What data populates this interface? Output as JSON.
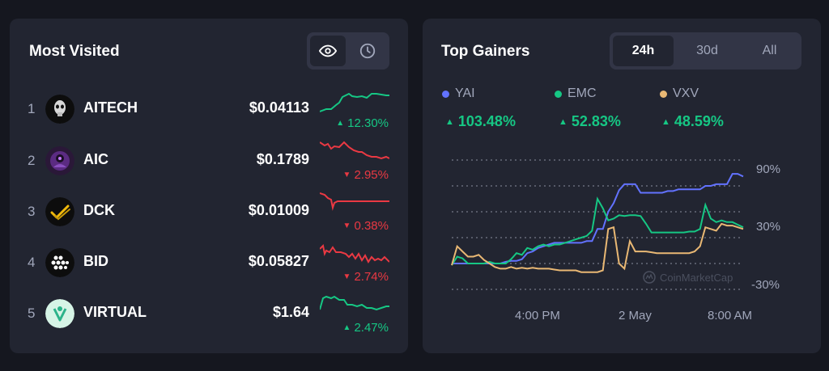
{
  "most_visited": {
    "title": "Most Visited",
    "toggle": {
      "eye_icon": "eye-icon",
      "clock_icon": "clock-icon",
      "active": "eye"
    },
    "rows": [
      {
        "rank": "1",
        "symbol": "AITECH",
        "price": "$0.04113",
        "change": "12.30%",
        "direction": "up",
        "icon": "aitech-icon",
        "color": "#16c784"
      },
      {
        "rank": "2",
        "symbol": "AIC",
        "price": "$0.1789",
        "change": "2.95%",
        "direction": "down",
        "icon": "aic-icon",
        "color": "#ea3943"
      },
      {
        "rank": "3",
        "symbol": "DCK",
        "price": "$0.01009",
        "change": "0.38%",
        "direction": "down",
        "icon": "dck-icon",
        "color": "#ea3943"
      },
      {
        "rank": "4",
        "symbol": "BID",
        "price": "$0.05827",
        "change": "2.74%",
        "direction": "down",
        "icon": "bid-icon",
        "color": "#ea3943"
      },
      {
        "rank": "5",
        "symbol": "VIRTUAL",
        "price": "$1.64",
        "change": "2.47%",
        "direction": "up",
        "icon": "virtual-icon",
        "color": "#16c784"
      }
    ]
  },
  "top_gainers": {
    "title": "Top Gainers",
    "tabs": [
      {
        "label": "24h",
        "active": true
      },
      {
        "label": "30d",
        "active": false
      },
      {
        "label": "All",
        "active": false
      }
    ],
    "watermark": "CoinMarketCap"
  },
  "chart_data": {
    "type": "line",
    "x_ticks": [
      "4:00 PM",
      "2 May",
      "8:00 AM"
    ],
    "y_ticks": [
      "90%",
      "30%",
      "-30%"
    ],
    "ylim": [
      -30,
      120
    ],
    "grid": true,
    "legend_placement": "top-left",
    "series": [
      {
        "name": "YAI",
        "change": "103.48%",
        "color": "#6272ff",
        "values": [
          0,
          0,
          0,
          0,
          0,
          0,
          0,
          0,
          0,
          0,
          2,
          3,
          3,
          5,
          12,
          14,
          18,
          20,
          22,
          24,
          24,
          24,
          24,
          24,
          24,
          26,
          26,
          40,
          40,
          60,
          70,
          85,
          92,
          92,
          92,
          82,
          82,
          82,
          82,
          82,
          84,
          84,
          86,
          86,
          86,
          86,
          86,
          90,
          90,
          92,
          92,
          92,
          104,
          104,
          101
        ]
      },
      {
        "name": "EMC",
        "change": "52.83%",
        "color": "#16c784",
        "values": [
          -2,
          8,
          6,
          0,
          0,
          0,
          0,
          2,
          0,
          0,
          0,
          5,
          12,
          10,
          18,
          16,
          20,
          22,
          20,
          22,
          22,
          24,
          26,
          28,
          30,
          32,
          38,
          75,
          64,
          50,
          52,
          56,
          55,
          56,
          56,
          55,
          46,
          36,
          36,
          36,
          36,
          36,
          36,
          36,
          37,
          37,
          40,
          68,
          52,
          48,
          50,
          48,
          48,
          45,
          42
        ]
      },
      {
        "name": "VXV",
        "change": "48.59%",
        "color": "#e9b874",
        "values": [
          -2,
          20,
          14,
          8,
          8,
          10,
          4,
          0,
          -4,
          -6,
          -6,
          -4,
          -6,
          -5,
          -6,
          -5,
          -6,
          -6,
          -6,
          -7,
          -8,
          -8,
          -8,
          -8,
          -10,
          -10,
          -10,
          -10,
          -8,
          40,
          42,
          0,
          -6,
          26,
          14,
          14,
          14,
          13,
          12,
          12,
          12,
          12,
          12,
          12,
          12,
          14,
          20,
          42,
          40,
          38,
          46,
          44,
          44,
          42,
          40
        ]
      }
    ]
  }
}
